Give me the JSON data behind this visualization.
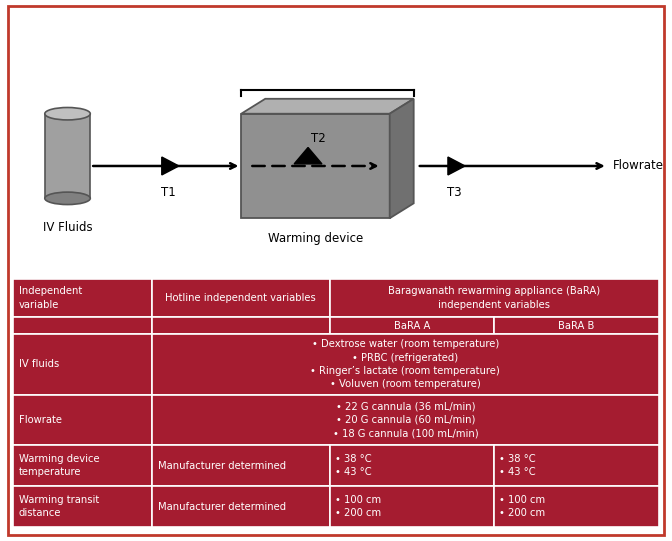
{
  "bg_color": "#ffffff",
  "border_color": "#c0392b",
  "red_color": "#a51c30",
  "white": "#ffffff",
  "light_gray": "#999999",
  "mid_gray": "#888888",
  "dark_gray": "#555555",
  "cyl_face": "#a0a0a0",
  "cyl_top": "#c0c0c0",
  "cyl_bot": "#808080",
  "box_front": "#909090",
  "box_top": "#b0b0b0",
  "box_right": "#707070",
  "diagram_labels": {
    "iv_fluids": "IV Fluids",
    "warming_device": "Warming device",
    "flowrate": "Flowrate",
    "T1": "T1",
    "T2": "T2",
    "T3": "T3"
  }
}
